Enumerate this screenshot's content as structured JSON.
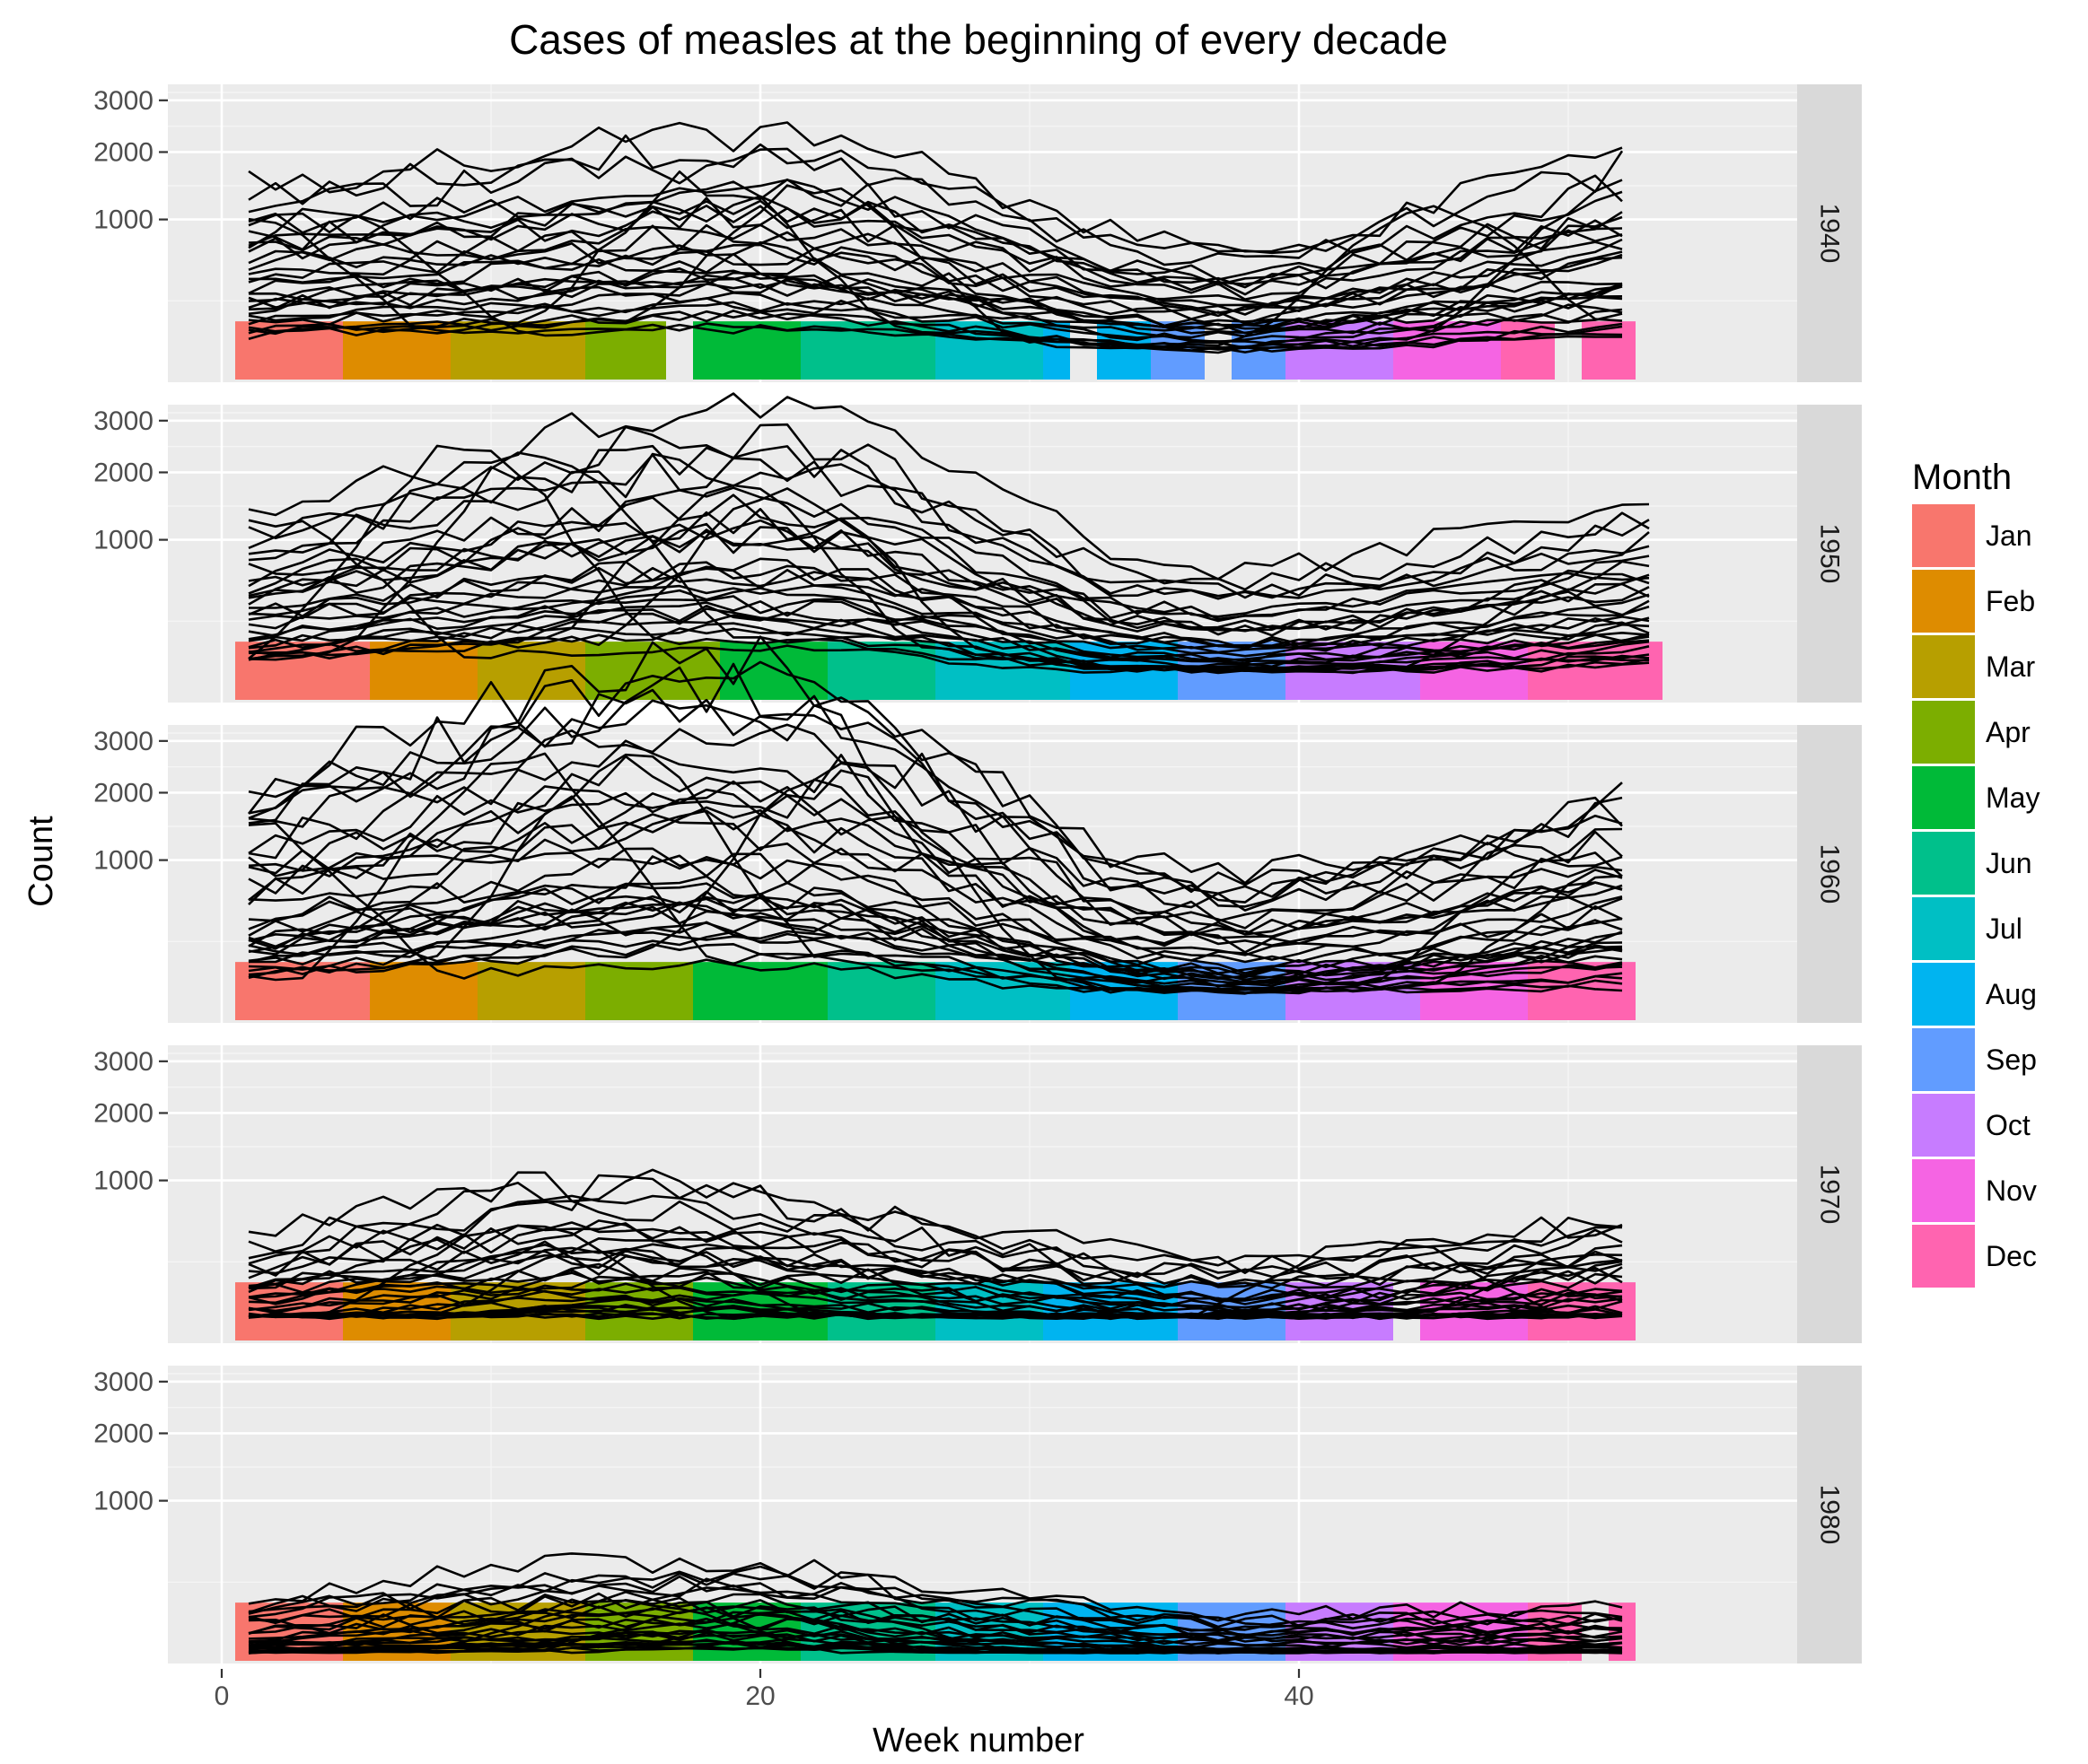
{
  "chart_data": {
    "type": "bar",
    "title": "Cases of measles at the beginning of every decade",
    "xlabel": "Week number",
    "ylabel": "Count",
    "x_ticks": [
      0,
      20,
      40
    ],
    "xlim": [
      -2,
      58.5
    ],
    "y_scale": "sqrt",
    "y_ticks": [
      1000,
      2000,
      3000
    ],
    "ylim": [
      0,
      3350
    ],
    "grid": true,
    "legend": {
      "title": "Month",
      "position": "right",
      "items": [
        {
          "label": "Jan",
          "color": "#F8766D"
        },
        {
          "label": "Feb",
          "color": "#DE8C00"
        },
        {
          "label": "Mar",
          "color": "#B79F00"
        },
        {
          "label": "Apr",
          "color": "#7CAE00"
        },
        {
          "label": "May",
          "color": "#00BA38"
        },
        {
          "label": "Jun",
          "color": "#00C08B"
        },
        {
          "label": "Jul",
          "color": "#00BFC4"
        },
        {
          "label": "Aug",
          "color": "#00B4F0"
        },
        {
          "label": "Sep",
          "color": "#619CFF"
        },
        {
          "label": "Oct",
          "color": "#C77CFF"
        },
        {
          "label": "Nov",
          "color": "#F564E3"
        },
        {
          "label": "Dec",
          "color": "#FF64B0"
        }
      ]
    },
    "band_height": 140,
    "facets": [
      {
        "label": "1940",
        "bars": [
          {
            "month": "Jan",
            "from": 0.5,
            "to": 4.5
          },
          {
            "month": "Feb",
            "from": 4.5,
            "to": 8.5
          },
          {
            "month": "Mar",
            "from": 8.5,
            "to": 13.5
          },
          {
            "month": "Apr",
            "from": 13.5,
            "to": 16.5
          },
          {
            "month": "May",
            "from": 17.5,
            "to": 21.5
          },
          {
            "month": "Jun",
            "from": 21.5,
            "to": 26.5
          },
          {
            "month": "Jul",
            "from": 26.5,
            "to": 30.5
          },
          {
            "month": "Aug",
            "from": 30.5,
            "to": 31.5
          },
          {
            "month": "Aug",
            "from": 32.5,
            "to": 34.5
          },
          {
            "month": "Sep",
            "from": 34.5,
            "to": 36.5
          },
          {
            "month": "Sep",
            "from": 37.5,
            "to": 39.5
          },
          {
            "month": "Oct",
            "from": 39.5,
            "to": 43.5
          },
          {
            "month": "Nov",
            "from": 43.5,
            "to": 47.5
          },
          {
            "month": "Dec",
            "from": 47.5,
            "to": 49.5
          },
          {
            "month": "Dec",
            "from": 50.5,
            "to": 52.5
          }
        ],
        "series_count": 30,
        "x_end": 52,
        "profile": [
          [
            1,
            330
          ],
          [
            6,
            380
          ],
          [
            12,
            450
          ],
          [
            18,
            520
          ],
          [
            23,
            480
          ],
          [
            28,
            330
          ],
          [
            33,
            190
          ],
          [
            38,
            150
          ],
          [
            43,
            220
          ],
          [
            48,
            330
          ],
          [
            52,
            420
          ]
        ],
        "spread": 1.5,
        "noise": 0.18,
        "min_level": 40,
        "spikes": [
          [
            1,
            980
          ],
          [
            4,
            1150
          ],
          [
            18,
            1500
          ],
          [
            22,
            1450
          ],
          [
            45,
            1120
          ],
          [
            52,
            1420
          ]
        ]
      },
      {
        "label": "1950",
        "bars": [
          {
            "month": "Jan",
            "from": 0.5,
            "to": 5.5
          },
          {
            "month": "Feb",
            "from": 5.5,
            "to": 9.5
          },
          {
            "month": "Mar",
            "from": 9.5,
            "to": 13.5
          },
          {
            "month": "Apr",
            "from": 13.5,
            "to": 18.5
          },
          {
            "month": "May",
            "from": 18.5,
            "to": 22.5
          },
          {
            "month": "Jun",
            "from": 22.5,
            "to": 26.5
          },
          {
            "month": "Jul",
            "from": 26.5,
            "to": 31.5
          },
          {
            "month": "Aug",
            "from": 31.5,
            "to": 35.5
          },
          {
            "month": "Sep",
            "from": 35.5,
            "to": 39.5
          },
          {
            "month": "Oct",
            "from": 39.5,
            "to": 44.5
          },
          {
            "month": "Nov",
            "from": 44.5,
            "to": 48.5
          },
          {
            "month": "Dec",
            "from": 48.5,
            "to": 53.5
          }
        ],
        "series_count": 30,
        "x_end": 53,
        "profile": [
          [
            1,
            260
          ],
          [
            6,
            360
          ],
          [
            12,
            500
          ],
          [
            18,
            620
          ],
          [
            23,
            560
          ],
          [
            28,
            330
          ],
          [
            33,
            150
          ],
          [
            38,
            120
          ],
          [
            43,
            160
          ],
          [
            48,
            220
          ],
          [
            53,
            300
          ]
        ],
        "spread": 1.6,
        "noise": 0.18,
        "min_level": 40,
        "spikes": [
          [
            2,
            1300
          ],
          [
            9,
            2450
          ],
          [
            12,
            2400
          ],
          [
            19,
            1680
          ],
          [
            21,
            1650
          ],
          [
            51,
            640
          ]
        ]
      },
      {
        "label": "1960",
        "bars": [
          {
            "month": "Jan",
            "from": 0.5,
            "to": 5.5
          },
          {
            "month": "Feb",
            "from": 5.5,
            "to": 9.5
          },
          {
            "month": "Mar",
            "from": 9.5,
            "to": 13.5
          },
          {
            "month": "Apr",
            "from": 13.5,
            "to": 17.5
          },
          {
            "month": "May",
            "from": 17.5,
            "to": 22.5
          },
          {
            "month": "Jun",
            "from": 22.5,
            "to": 26.5
          },
          {
            "month": "Jul",
            "from": 26.5,
            "to": 31.5
          },
          {
            "month": "Aug",
            "from": 31.5,
            "to": 35.5
          },
          {
            "month": "Sep",
            "from": 35.5,
            "to": 39.5
          },
          {
            "month": "Oct",
            "from": 39.5,
            "to": 44.5
          },
          {
            "month": "Nov",
            "from": 44.5,
            "to": 48.5
          },
          {
            "month": "Dec",
            "from": 48.5,
            "to": 52.5
          }
        ],
        "series_count": 34,
        "x_end": 52,
        "profile": [
          [
            1,
            380
          ],
          [
            6,
            520
          ],
          [
            12,
            760
          ],
          [
            18,
            900
          ],
          [
            23,
            760
          ],
          [
            28,
            430
          ],
          [
            33,
            190
          ],
          [
            38,
            140
          ],
          [
            43,
            190
          ],
          [
            48,
            280
          ],
          [
            52,
            340
          ]
        ],
        "spread": 1.8,
        "noise": 0.2,
        "min_level": 40,
        "spikes": [
          [
            1,
            1500
          ],
          [
            11,
            2750
          ],
          [
            15,
            2600
          ],
          [
            23,
            2500
          ],
          [
            50,
            1050
          ],
          [
            52,
            860
          ]
        ]
      },
      {
        "label": "1970",
        "bars": [
          {
            "month": "Jan",
            "from": 0.5,
            "to": 4.5
          },
          {
            "month": "Feb",
            "from": 4.5,
            "to": 8.5
          },
          {
            "month": "Mar",
            "from": 8.5,
            "to": 13.5
          },
          {
            "month": "Apr",
            "from": 13.5,
            "to": 17.5
          },
          {
            "month": "May",
            "from": 17.5,
            "to": 22.5
          },
          {
            "month": "Jun",
            "from": 22.5,
            "to": 26.5
          },
          {
            "month": "Jul",
            "from": 26.5,
            "to": 30.5
          },
          {
            "month": "Aug",
            "from": 30.5,
            "to": 35.5
          },
          {
            "month": "Sep",
            "from": 35.5,
            "to": 39.5
          },
          {
            "month": "Oct",
            "from": 39.5,
            "to": 43.5
          },
          {
            "month": "Nov",
            "from": 44.5,
            "to": 48.5
          },
          {
            "month": "Dec",
            "from": 48.5,
            "to": 52.5
          }
        ],
        "series_count": 30,
        "x_end": 52,
        "profile": [
          [
            1,
            55
          ],
          [
            6,
            90
          ],
          [
            12,
            130
          ],
          [
            18,
            130
          ],
          [
            23,
            100
          ],
          [
            28,
            70
          ],
          [
            33,
            45
          ],
          [
            38,
            35
          ],
          [
            43,
            45
          ],
          [
            48,
            65
          ],
          [
            52,
            85
          ]
        ],
        "spread": 2.0,
        "noise": 0.25,
        "min_level": 28,
        "spikes": [
          [
            11,
            520
          ],
          [
            15,
            430
          ],
          [
            43,
            400
          ],
          [
            51,
            310
          ]
        ]
      },
      {
        "label": "1980",
        "bars": [
          {
            "month": "Jan",
            "from": 0.5,
            "to": 4.5
          },
          {
            "month": "Feb",
            "from": 4.5,
            "to": 8.5
          },
          {
            "month": "Mar",
            "from": 8.5,
            "to": 13.5
          },
          {
            "month": "Apr",
            "from": 13.5,
            "to": 17.5
          },
          {
            "month": "May",
            "from": 17.5,
            "to": 21.5
          },
          {
            "month": "Jun",
            "from": 21.5,
            "to": 26.5
          },
          {
            "month": "Jul",
            "from": 26.5,
            "to": 30.5
          },
          {
            "month": "Aug",
            "from": 30.5,
            "to": 35.5
          },
          {
            "month": "Sep",
            "from": 35.5,
            "to": 39.5
          },
          {
            "month": "Oct",
            "from": 39.5,
            "to": 43.5
          },
          {
            "month": "Nov",
            "from": 43.5,
            "to": 48.5
          },
          {
            "month": "Dec",
            "from": 48.5,
            "to": 50.5
          },
          {
            "month": "Dec",
            "from": 51.5,
            "to": 52.5
          }
        ],
        "series_count": 28,
        "x_end": 52,
        "profile": [
          [
            1,
            18
          ],
          [
            6,
            28
          ],
          [
            12,
            38
          ],
          [
            18,
            45
          ],
          [
            23,
            38
          ],
          [
            28,
            24
          ],
          [
            33,
            14
          ],
          [
            38,
            10
          ],
          [
            43,
            12
          ],
          [
            48,
            12
          ],
          [
            52,
            14
          ]
        ],
        "spread": 2.2,
        "noise": 0.3,
        "min_level": 5,
        "spikes": [
          [
            15,
            140
          ],
          [
            19,
            120
          ],
          [
            22,
            110
          ]
        ]
      }
    ]
  }
}
